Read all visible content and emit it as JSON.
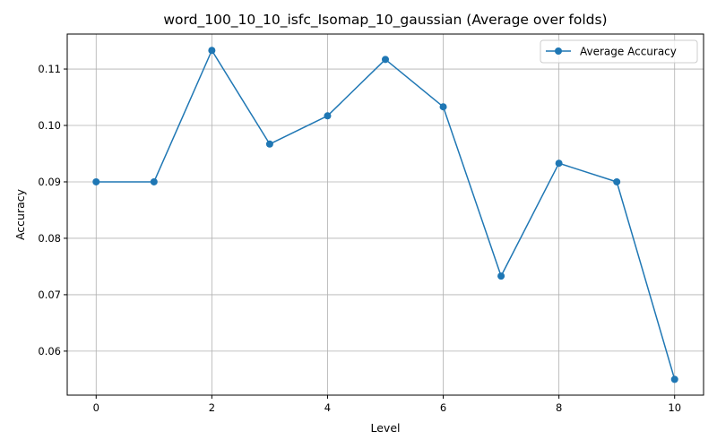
{
  "chart_data": {
    "type": "line",
    "title": "word_100_10_10_isfc_Isomap_10_gaussian (Average over folds)",
    "xlabel": "Level",
    "ylabel": "Accuracy",
    "x": [
      0,
      1,
      2,
      3,
      4,
      5,
      6,
      7,
      8,
      9,
      10
    ],
    "series": [
      {
        "name": "Average Accuracy",
        "values": [
          0.09,
          0.09,
          0.1133,
          0.0967,
          0.1017,
          0.1117,
          0.1033,
          0.0733,
          0.0933,
          0.09,
          0.055
        ],
        "color": "#1f77b4",
        "marker": "circle"
      }
    ],
    "xlim": [
      -0.5,
      10.5
    ],
    "ylim": [
      0.0522,
      0.1162
    ],
    "xticks": [
      0,
      2,
      4,
      6,
      8,
      10
    ],
    "xtick_labels": [
      "0",
      "2",
      "4",
      "6",
      "8",
      "10"
    ],
    "yticks": [
      0.06,
      0.07,
      0.08,
      0.09,
      0.1,
      0.11
    ],
    "ytick_labels": [
      "0.06",
      "0.07",
      "0.08",
      "0.09",
      "0.10",
      "0.11"
    ],
    "grid": true,
    "legend_position": "top-right"
  }
}
